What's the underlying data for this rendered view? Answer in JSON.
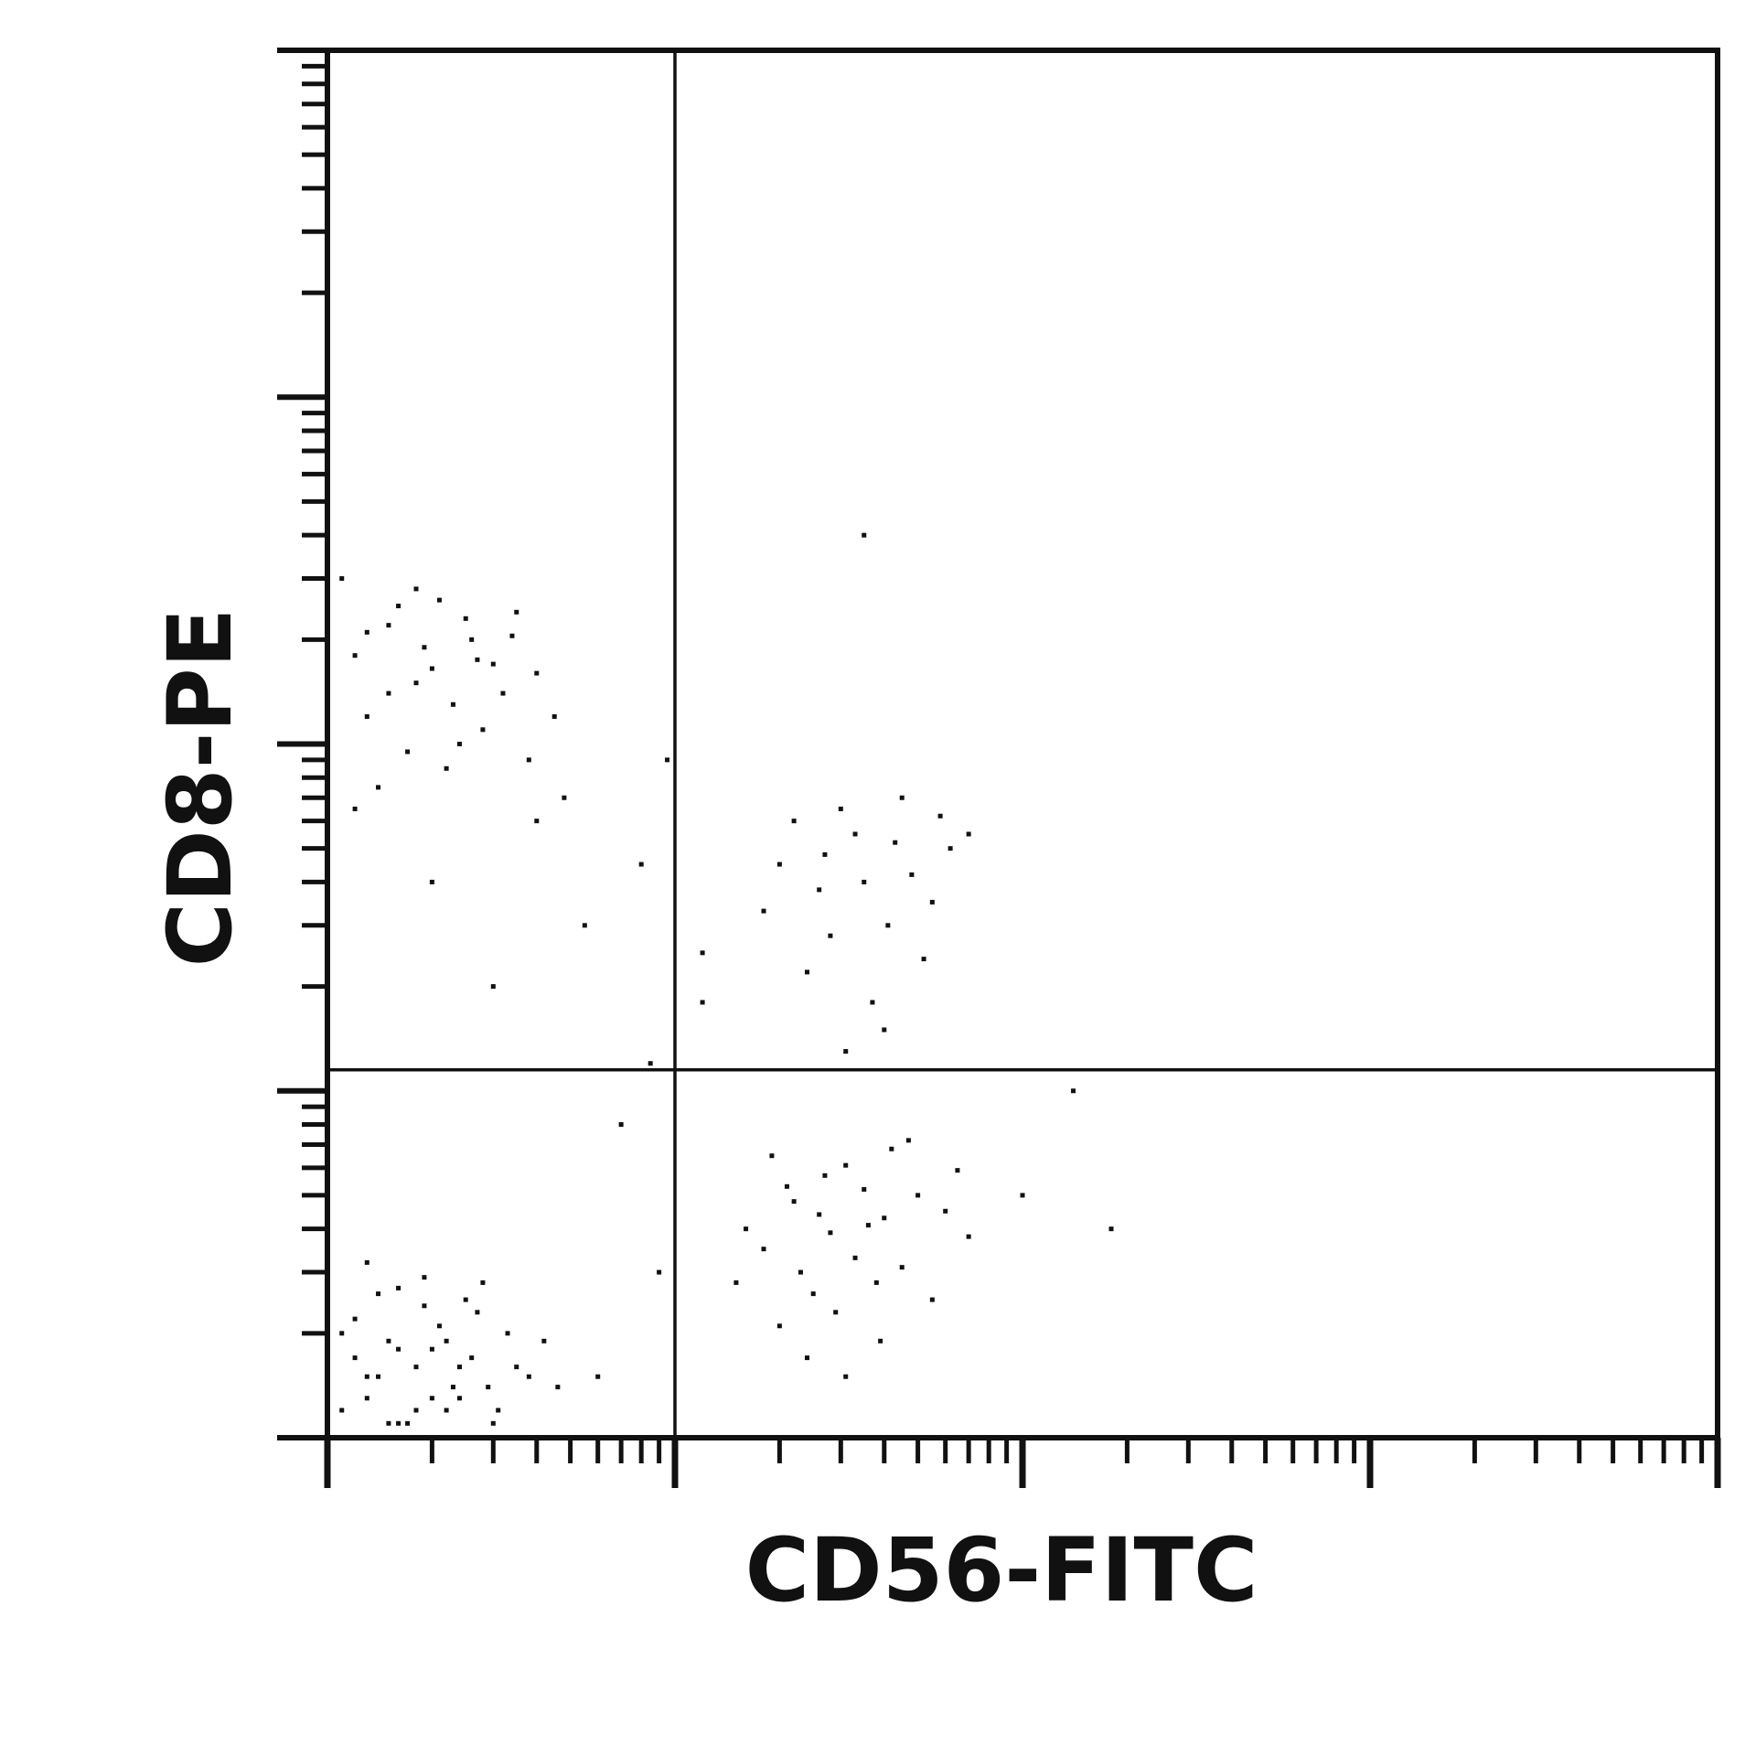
{
  "chart_data": {
    "type": "scatter",
    "x_label": "CD56-FITC",
    "y_label": "CD8-PE",
    "log_x": true,
    "log_y": true,
    "color": "#111111",
    "xlim": [
      1,
      10000
    ],
    "ylim": [
      1,
      10000
    ],
    "xticks": [
      1,
      2,
      3,
      4,
      5,
      6,
      7,
      8,
      9,
      10,
      20,
      30,
      40,
      50,
      60,
      70,
      80,
      90,
      100,
      200,
      300,
      400,
      500,
      600,
      700,
      800,
      900,
      1000,
      2000,
      3000,
      4000,
      5000,
      6000,
      7000,
      8000,
      9000,
      10000
    ],
    "yticks": [
      1,
      2,
      3,
      4,
      5,
      6,
      7,
      8,
      9,
      10,
      20,
      30,
      40,
      50,
      60,
      70,
      80,
      90,
      100,
      200,
      300,
      400,
      500,
      600,
      700,
      800,
      900,
      1000,
      2000,
      3000,
      4000,
      5000,
      6000,
      7000,
      8000,
      9000,
      10000
    ],
    "gates": {
      "x": 10,
      "y": 11.5
    },
    "points": [
      [
        1.1,
        1.2
      ],
      [
        1.3,
        1.5
      ],
      [
        1.6,
        1.1
      ],
      [
        2.0,
        1.8
      ],
      [
        2.4,
        1.3
      ],
      [
        1.2,
        2.2
      ],
      [
        1.8,
        1.6
      ],
      [
        2.9,
        1.4
      ],
      [
        3.3,
        2.0
      ],
      [
        1.5,
        1.9
      ],
      [
        2.2,
        1.2
      ],
      [
        1.4,
        2.6
      ],
      [
        1.9,
        2.4
      ],
      [
        2.6,
        1.7
      ],
      [
        3.8,
        1.5
      ],
      [
        1.0,
        1.4
      ],
      [
        1.7,
        1.1
      ],
      [
        2.1,
        2.1
      ],
      [
        2.8,
        2.8
      ],
      [
        1.3,
        1.3
      ],
      [
        1.6,
        1.8
      ],
      [
        2.4,
        1.6
      ],
      [
        3.1,
        1.2
      ],
      [
        4.2,
        1.9
      ],
      [
        1.2,
        1.7
      ],
      [
        1.9,
        2.9
      ],
      [
        2.3,
        1.4
      ],
      [
        1.5,
        1.1
      ],
      [
        2.7,
        2.3
      ],
      [
        3.5,
        1.6
      ],
      [
        1.1,
        2.0
      ],
      [
        1.4,
        1.5
      ],
      [
        2.0,
        1.3
      ],
      [
        2.5,
        2.5
      ],
      [
        1.8,
        1.2
      ],
      [
        3.0,
        1.1
      ],
      [
        4.6,
        1.4
      ],
      [
        1.3,
        3.2
      ],
      [
        1.6,
        2.7
      ],
      [
        2.2,
        1.9
      ],
      [
        1.2,
        180
      ],
      [
        1.5,
        220
      ],
      [
        1.8,
        150
      ],
      [
        2.1,
        260
      ],
      [
        1.3,
        120
      ],
      [
        2.6,
        200
      ],
      [
        3.0,
        170
      ],
      [
        1.7,
        95
      ],
      [
        2.3,
        130
      ],
      [
        3.5,
        240
      ],
      [
        1.1,
        300
      ],
      [
        1.9,
        190
      ],
      [
        2.8,
        110
      ],
      [
        4.0,
        160
      ],
      [
        1.4,
        75
      ],
      [
        2.2,
        85
      ],
      [
        3.2,
        140
      ],
      [
        1.6,
        250
      ],
      [
        2.5,
        230
      ],
      [
        4.5,
        120
      ],
      [
        1.3,
        210
      ],
      [
        2.0,
        165
      ],
      [
        3.8,
        90
      ],
      [
        1.2,
        65
      ],
      [
        2.7,
        175
      ],
      [
        1.8,
        280
      ],
      [
        3.4,
        205
      ],
      [
        1.5,
        140
      ],
      [
        2.4,
        100
      ],
      [
        4.8,
        70
      ],
      [
        18,
        3.5
      ],
      [
        22,
        4.8
      ],
      [
        28,
        3.9
      ],
      [
        35,
        5.2
      ],
      [
        25,
        2.6
      ],
      [
        40,
        4.3
      ],
      [
        31,
        6.1
      ],
      [
        20,
        2.1
      ],
      [
        45,
        3.1
      ],
      [
        27,
        5.7
      ],
      [
        38,
        2.8
      ],
      [
        16,
        4.0
      ],
      [
        50,
        5.0
      ],
      [
        33,
        3.3
      ],
      [
        24,
        1.7
      ],
      [
        60,
        4.5
      ],
      [
        42,
        6.8
      ],
      [
        29,
        2.3
      ],
      [
        19,
        6.5
      ],
      [
        55,
        2.5
      ],
      [
        36,
        4.1
      ],
      [
        23,
        3.0
      ],
      [
        70,
        3.8
      ],
      [
        47,
        7.2
      ],
      [
        15,
        2.8
      ],
      [
        31,
        1.5
      ],
      [
        26,
        4.4
      ],
      [
        65,
        5.9
      ],
      [
        39,
        1.9
      ],
      [
        21,
        5.3
      ],
      [
        20,
        45
      ],
      [
        26,
        38
      ],
      [
        33,
        55
      ],
      [
        41,
        30
      ],
      [
        24,
        22
      ],
      [
        48,
        42
      ],
      [
        30,
        65
      ],
      [
        55,
        35
      ],
      [
        37,
        18
      ],
      [
        22,
        60
      ],
      [
        62,
        50
      ],
      [
        28,
        28
      ],
      [
        45,
        70
      ],
      [
        35,
        40
      ],
      [
        18,
        33
      ],
      [
        52,
        24
      ],
      [
        40,
        15
      ],
      [
        27,
        48
      ],
      [
        70,
        55
      ],
      [
        31,
        13
      ],
      [
        58,
        62
      ],
      [
        43,
        52
      ],
      [
        5.5,
        30
      ],
      [
        8,
        45
      ],
      [
        3,
        20
      ],
      [
        7,
        8
      ],
      [
        12,
        25
      ],
      [
        9,
        3
      ],
      [
        6,
        1.5
      ],
      [
        4,
        60
      ],
      [
        2,
        40
      ],
      [
        8.5,
        12
      ],
      [
        100,
        5
      ],
      [
        140,
        10
      ],
      [
        180,
        4
      ],
      [
        35,
        400
      ],
      [
        12,
        18
      ],
      [
        9.5,
        90
      ]
    ]
  }
}
